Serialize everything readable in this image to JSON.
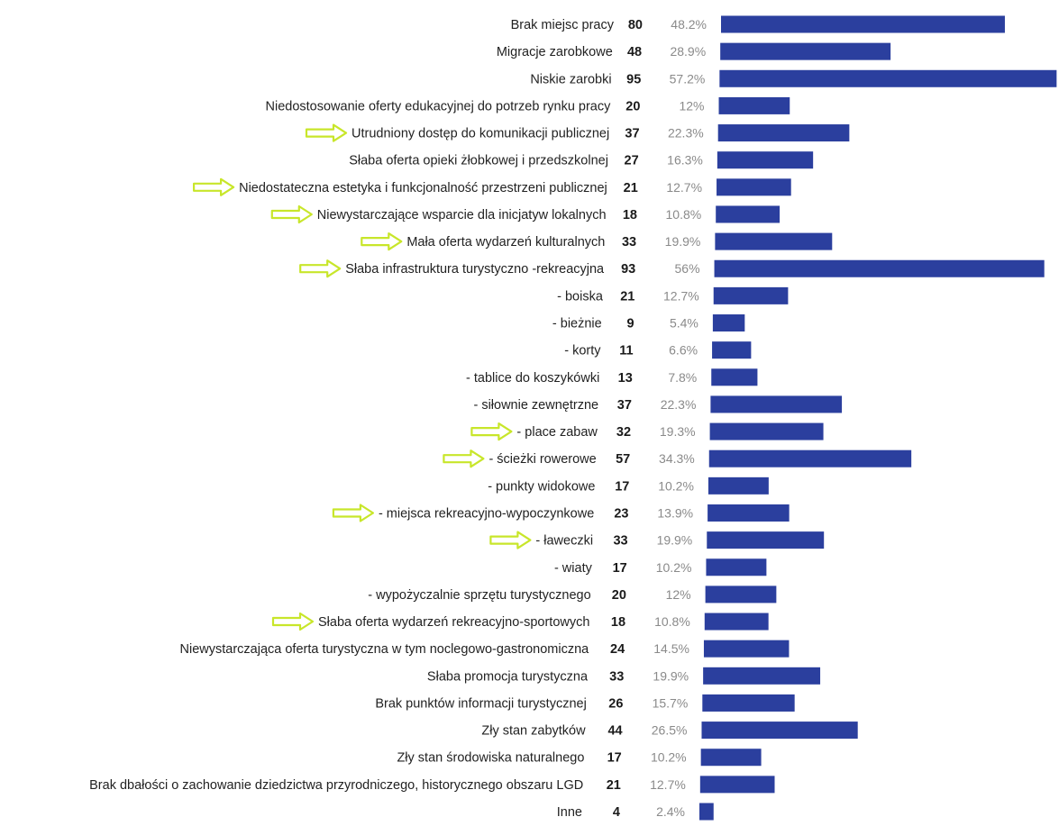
{
  "chart_data": {
    "type": "bar",
    "orientation": "horizontal",
    "bar_color": "#2b3f9e",
    "arrow_color": "#c8e62a",
    "max_value": 95,
    "rows": [
      {
        "label": "Brak miejsc pracy",
        "count": 80,
        "pct": "48.2%",
        "arrow": false
      },
      {
        "label": "Migracje zarobkowe",
        "count": 48,
        "pct": "28.9%",
        "arrow": false
      },
      {
        "label": "Niskie zarobki",
        "count": 95,
        "pct": "57.2%",
        "arrow": false
      },
      {
        "label": "Niedostosowanie oferty edukacyjnej do potrzeb rynku pracy",
        "count": 20,
        "pct": "12%",
        "arrow": false
      },
      {
        "label": "Utrudniony dostęp do komunikacji publicznej",
        "count": 37,
        "pct": "22.3%",
        "arrow": true
      },
      {
        "label": "Słaba oferta opieki żłobkowej i przedszkolnej",
        "count": 27,
        "pct": "16.3%",
        "arrow": false
      },
      {
        "label": "Niedostateczna estetyka i funkcjonalność przestrzeni publicznej",
        "count": 21,
        "pct": "12.7%",
        "arrow": true
      },
      {
        "label": "Niewystarczające wsparcie dla inicjatyw lokalnych",
        "count": 18,
        "pct": "10.8%",
        "arrow": true
      },
      {
        "label": "Mała oferta wydarzeń kulturalnych",
        "count": 33,
        "pct": "19.9%",
        "arrow": true
      },
      {
        "label": "Słaba infrastruktura turystyczno -rekreacyjna",
        "count": 93,
        "pct": "56%",
        "arrow": true
      },
      {
        "label": "- boiska",
        "count": 21,
        "pct": "12.7%",
        "arrow": false
      },
      {
        "label": "- bieżnie",
        "count": 9,
        "pct": "5.4%",
        "arrow": false
      },
      {
        "label": "- korty",
        "count": 11,
        "pct": "6.6%",
        "arrow": false
      },
      {
        "label": "- tablice do koszykówki",
        "count": 13,
        "pct": "7.8%",
        "arrow": false
      },
      {
        "label": "- siłownie zewnętrzne",
        "count": 37,
        "pct": "22.3%",
        "arrow": false
      },
      {
        "label": "- place zabaw",
        "count": 32,
        "pct": "19.3%",
        "arrow": true
      },
      {
        "label": "- ścieżki rowerowe",
        "count": 57,
        "pct": "34.3%",
        "arrow": true
      },
      {
        "label": "- punkty widokowe",
        "count": 17,
        "pct": "10.2%",
        "arrow": false
      },
      {
        "label": "- miejsca rekreacyjno-wypoczynkowe",
        "count": 23,
        "pct": "13.9%",
        "arrow": true
      },
      {
        "label": "- ławeczki",
        "count": 33,
        "pct": "19.9%",
        "arrow": true
      },
      {
        "label": "- wiaty",
        "count": 17,
        "pct": "10.2%",
        "arrow": false
      },
      {
        "label": "- wypożyczalnie sprzętu turystycznego",
        "count": 20,
        "pct": "12%",
        "arrow": false
      },
      {
        "label": "Słaba oferta wydarzeń rekreacyjno-sportowych",
        "count": 18,
        "pct": "10.8%",
        "arrow": true
      },
      {
        "label": "Niewystarczająca oferta turystyczna w tym noclegowo-gastronomiczna",
        "count": 24,
        "pct": "14.5%",
        "arrow": false
      },
      {
        "label": "Słaba promocja turystyczna",
        "count": 33,
        "pct": "19.9%",
        "arrow": false
      },
      {
        "label": "Brak punktów informacji turystycznej",
        "count": 26,
        "pct": "15.7%",
        "arrow": false
      },
      {
        "label": "Zły stan zabytków",
        "count": 44,
        "pct": "26.5%",
        "arrow": false
      },
      {
        "label": "Zły stan środowiska naturalnego",
        "count": 17,
        "pct": "10.2%",
        "arrow": false
      },
      {
        "label": "Brak dbałości o zachowanie dziedzictwa przyrodniczego, historycznego obszaru LGD",
        "count": 21,
        "pct": "12.7%",
        "arrow": false
      },
      {
        "label": "Inne",
        "count": 4,
        "pct": "2.4%",
        "arrow": false
      }
    ]
  }
}
